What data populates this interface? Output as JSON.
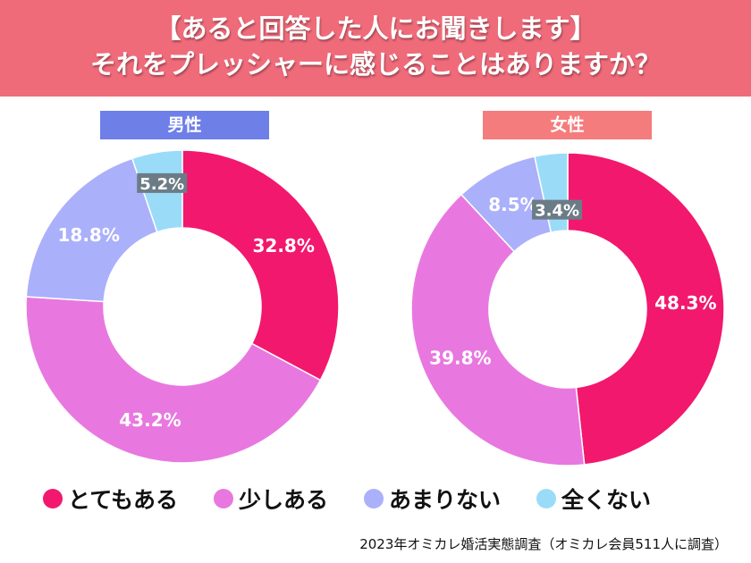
{
  "header": {
    "line1": "【あると回答した人にお聞きします】",
    "line2": "それをプレッシャーに感じることはありますか？"
  },
  "source": "2023年オミカレ婚活実態調査（オミカレ会員511人に調査）",
  "colors": {
    "header": "#f06b7a",
    "male_tag": "#6e7fe8",
    "female_tag": "#f57c7c"
  },
  "chart_data": {
    "type": "pie",
    "subtype": "donut",
    "categories": [
      "とてもある",
      "少しある",
      "あまりない",
      "全くない"
    ],
    "colors": [
      "#f2186e",
      "#e878e0",
      "#aab0fa",
      "#9adcf8"
    ],
    "legend_position": "bottom",
    "charts": [
      {
        "title": "男性",
        "values": [
          32.8,
          43.2,
          18.8,
          5.2
        ],
        "labels": [
          "32.8%",
          "43.2%",
          "18.8%",
          "5.2%"
        ]
      },
      {
        "title": "女性",
        "values": [
          48.3,
          39.8,
          8.5,
          3.4
        ],
        "labels": [
          "48.3%",
          "39.8%",
          "8.5%",
          "3.4%"
        ]
      }
    ]
  }
}
